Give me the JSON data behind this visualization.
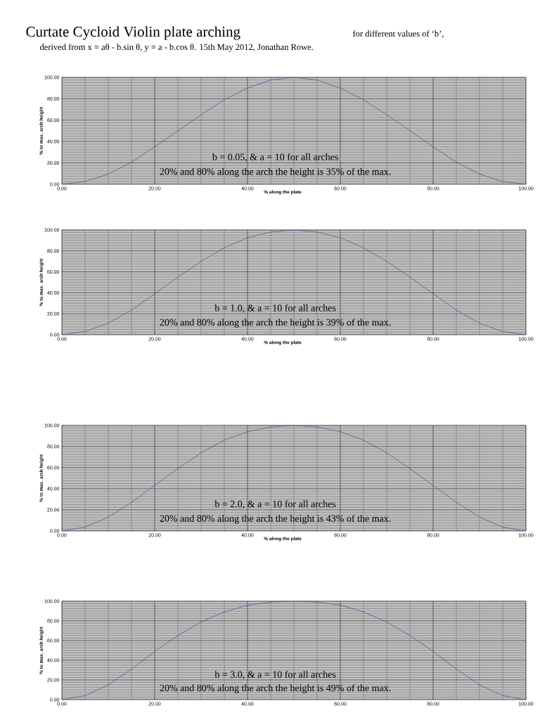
{
  "chart_data": [
    {
      "type": "line",
      "title": "Curtate Cycloid Violin plate arching",
      "subtitle": "for different values of ‘b’,",
      "xlabel": "% along the plate",
      "ylabel": "% to max. arch height",
      "x": [
        0,
        5,
        10,
        15,
        20,
        25,
        30,
        35,
        40,
        45,
        50,
        55,
        60,
        65,
        70,
        75,
        80,
        85,
        90,
        95,
        100
      ],
      "series": [
        {
          "color": "#3a3a9a",
          "values": [
            0,
            2.5,
            9.5,
            20.5,
            35,
            50,
            65,
            79,
            90,
            97.5,
            100,
            97.5,
            90,
            79,
            65,
            50,
            35,
            20.5,
            9.5,
            2.5,
            0
          ]
        }
      ],
      "xlim": [
        0,
        100
      ],
      "ylim": [
        0,
        100
      ],
      "xticks": [
        {
          "value": 0,
          "label": "0.00"
        },
        {
          "value": 20,
          "label": "20.00"
        },
        {
          "value": 40,
          "label": "40.00"
        },
        {
          "value": 60,
          "label": "60.00"
        },
        {
          "value": 80,
          "label": "80.00"
        },
        {
          "value": 100,
          "label": "100.00"
        }
      ],
      "yticks": [
        {
          "value": 0,
          "label": "0.00"
        },
        {
          "value": 20,
          "label": "20.00"
        },
        {
          "value": 40,
          "label": "40.00"
        },
        {
          "value": 60,
          "label": "60.00"
        },
        {
          "value": 80,
          "label": "80.00"
        },
        {
          "value": 100,
          "label": "100.00"
        }
      ],
      "grid": true,
      "annotations": [
        "derived from x = aθ - b.sin θ,  y = a - b.cos θ.   15th May 2012,   Jonathan Rowe.",
        "b = 0.05, & a = 10 for all arches",
        "20% and 80% along the arch the height is 35% of the max."
      ]
    },
    {
      "type": "line",
      "xlabel": "% along the plate",
      "ylabel": "% to max. arch height",
      "x": [
        0,
        5,
        10,
        15,
        20,
        25,
        30,
        35,
        40,
        45,
        50,
        55,
        60,
        65,
        70,
        75,
        80,
        85,
        90,
        95,
        100
      ],
      "series": [
        {
          "color": "#3a3a9a",
          "values": [
            0,
            3,
            11,
            23.5,
            39,
            55,
            70,
            83,
            92.5,
            98,
            100,
            98,
            92.5,
            83,
            70,
            55,
            39,
            23.5,
            11,
            3,
            0
          ]
        }
      ],
      "xlim": [
        0,
        100
      ],
      "ylim": [
        0,
        100
      ],
      "xticks": [
        {
          "value": 0,
          "label": "0.00"
        },
        {
          "value": 20,
          "label": "20.00"
        },
        {
          "value": 40,
          "label": "40.00"
        },
        {
          "value": 60,
          "label": "60.00"
        },
        {
          "value": 80,
          "label": "80.00"
        },
        {
          "value": 100,
          "label": "100.00"
        }
      ],
      "yticks": [
        {
          "value": 0,
          "label": "0.00"
        },
        {
          "value": 20,
          "label": "20.00"
        },
        {
          "value": 40,
          "label": "40.00"
        },
        {
          "value": 60,
          "label": "60.00"
        },
        {
          "value": 80,
          "label": "80.00"
        },
        {
          "value": 100,
          "label": "100.00"
        }
      ],
      "grid": true,
      "annotations": [
        "b = 1.0,   & a = 10 for all arches",
        "20% and 80% along the arch the height is 39% of the max."
      ]
    },
    {
      "type": "line",
      "xlabel": "% along the plate",
      "ylabel": "% to max. arch height",
      "x": [
        0,
        5,
        10,
        15,
        20,
        25,
        30,
        35,
        40,
        45,
        50,
        55,
        60,
        65,
        70,
        75,
        80,
        85,
        90,
        95,
        100
      ],
      "series": [
        {
          "color": "#3a3a9a",
          "values": [
            0,
            3.5,
            13,
            27,
            43,
            59,
            74,
            86,
            94,
            98.5,
            100,
            98.5,
            94,
            86,
            74,
            59,
            43,
            27,
            13,
            3.5,
            0
          ]
        }
      ],
      "xlim": [
        0,
        100
      ],
      "ylim": [
        0,
        100
      ],
      "xticks": [
        {
          "value": 0,
          "label": "0.00"
        },
        {
          "value": 20,
          "label": "20.00"
        },
        {
          "value": 40,
          "label": "40.00"
        },
        {
          "value": 60,
          "label": "60.00"
        },
        {
          "value": 80,
          "label": "80.00"
        },
        {
          "value": 100,
          "label": "100.00"
        }
      ],
      "yticks": [
        {
          "value": 0,
          "label": "0.00"
        },
        {
          "value": 20,
          "label": "20.00"
        },
        {
          "value": 40,
          "label": "40.00"
        },
        {
          "value": 60,
          "label": "60.00"
        },
        {
          "value": 80,
          "label": "80.00"
        },
        {
          "value": 100,
          "label": "100.00"
        }
      ],
      "grid": true,
      "annotations": [
        "b = 2.0,   & a = 10 for all arches",
        "20% and 80% along the arch the height is 43% of the max."
      ]
    },
    {
      "type": "line",
      "ylabel": "% to max. arch height",
      "x": [
        0,
        5,
        10,
        15,
        20,
        25,
        30,
        35,
        40,
        45,
        50,
        55,
        60,
        65,
        70,
        75,
        80,
        85,
        90,
        95,
        100
      ],
      "series": [
        {
          "color": "#3a3a9a",
          "values": [
            0,
            4,
            15,
            31,
            49,
            65,
            79,
            89,
            96,
            99,
            100,
            99,
            96,
            89,
            79,
            65,
            49,
            31,
            15,
            4,
            0
          ]
        }
      ],
      "xlim": [
        0,
        100
      ],
      "ylim": [
        0,
        100
      ],
      "xticks": [
        {
          "value": 0,
          "label": "0.00"
        },
        {
          "value": 20,
          "label": "20.00"
        },
        {
          "value": 40,
          "label": "40.00"
        },
        {
          "value": 60,
          "label": "60.00"
        },
        {
          "value": 80,
          "label": "80.00"
        },
        {
          "value": 100,
          "label": "100.00"
        }
      ],
      "yticks": [
        {
          "value": 0,
          "label": "0.00"
        },
        {
          "value": 20,
          "label": "20.00"
        },
        {
          "value": 40,
          "label": "40.00"
        },
        {
          "value": 60,
          "label": "60.00"
        },
        {
          "value": 80,
          "label": "80.00"
        },
        {
          "value": 100,
          "label": "100.00"
        }
      ],
      "grid": true,
      "annotations": [
        "b = 3.0,    & a = 10 for all arches",
        "20% and 80% along the arch the height is 49% of the max."
      ]
    }
  ]
}
